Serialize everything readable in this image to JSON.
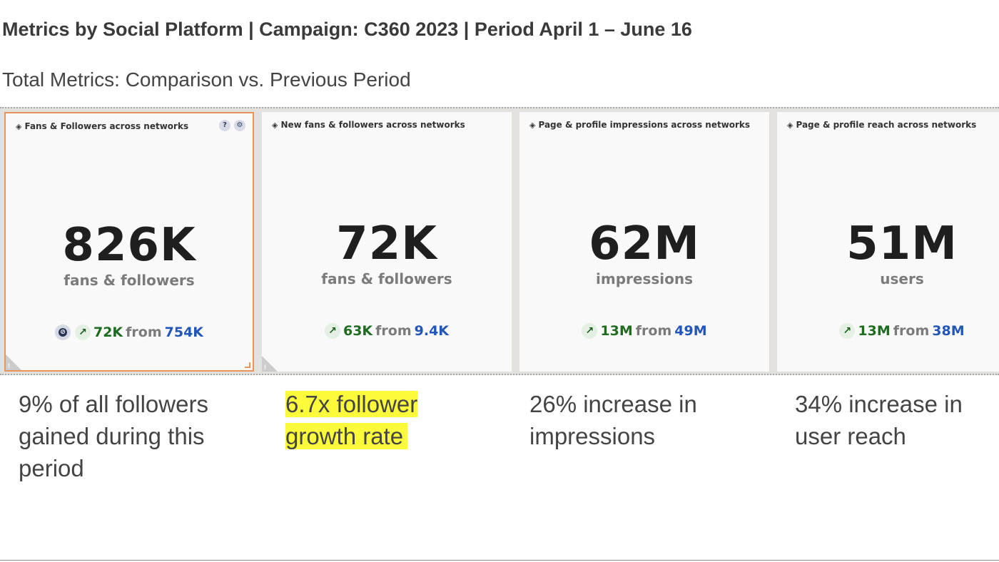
{
  "header": {
    "title": "Metrics by Social Platform | Campaign: C360 2023 | Period April 1 – June 16",
    "subtitle": "Total Metrics: Comparison vs. Previous Period"
  },
  "cards": [
    {
      "title": "Fans & Followers across networks",
      "value": "826K",
      "unit": "fans & followers",
      "delta": "72K",
      "from_label": "from",
      "previous": "754K",
      "selected": true
    },
    {
      "title": "New fans & followers across networks",
      "value": "72K",
      "unit": "fans & followers",
      "delta": "63K",
      "from_label": "from",
      "previous": "9.4K",
      "selected": false
    },
    {
      "title": "Page & profile impressions across networks",
      "value": "62M",
      "unit": "impressions",
      "delta": "13M",
      "from_label": "from",
      "previous": "49M",
      "selected": false
    },
    {
      "title": "Page & profile reach across networks",
      "value": "51M",
      "unit": "users",
      "delta": "13M",
      "from_label": "from",
      "previous": "38M",
      "selected": false
    }
  ],
  "notes": [
    "9% of all followers gained during this period",
    "6.7x follower growth rate",
    "26% increase in impressions",
    "34% increase in user reach"
  ],
  "icons": {
    "help": "?",
    "settings": "⚙",
    "arrow_up": "↗",
    "warning": "!"
  },
  "colors": {
    "selected_border": "#e8945a",
    "delta_green": "#1f6b1f",
    "previous_blue": "#2256b8",
    "highlight_yellow": "#fbfb3c"
  }
}
